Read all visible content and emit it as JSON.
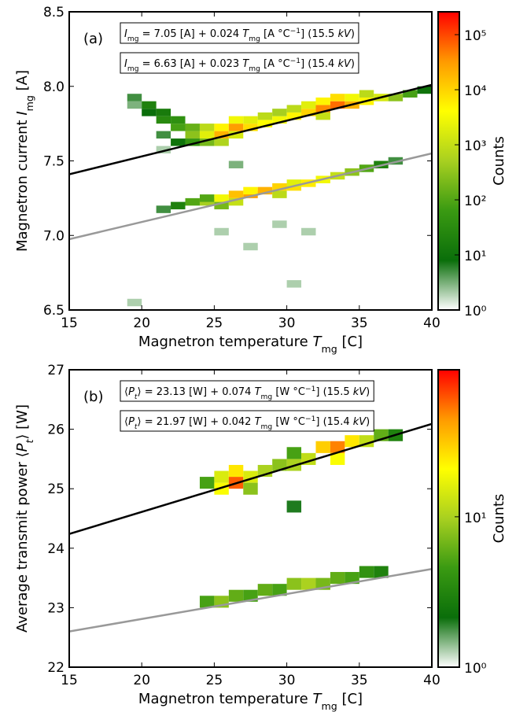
{
  "chart_data": [
    {
      "type": "heatmap",
      "panel_label": "(a)",
      "xlabel": [
        {
          "text": "Magnetron temperature "
        },
        {
          "text": "T",
          "style": "italic"
        },
        {
          "text": "mg",
          "style": "sub"
        },
        {
          "text": " [C]"
        }
      ],
      "ylabel": [
        {
          "text": "Magnetron current "
        },
        {
          "text": "I",
          "style": "italic"
        },
        {
          "text": "mg",
          "style": "sub"
        },
        {
          "text": " [A]"
        }
      ],
      "xlim": [
        15,
        40
      ],
      "xticks": [
        15,
        20,
        25,
        30,
        35,
        40
      ],
      "ylim": [
        6.5,
        8.5
      ],
      "yticks": [
        6.5,
        {
          "value": 7,
          "label": "7.0"
        },
        7.5,
        {
          "value": 8,
          "label": "8.0"
        },
        8.5
      ],
      "bin_width": [
        1,
        0.05
      ],
      "colormap": [
        "#ffffff",
        "#0a6e0a",
        "#3a9a12",
        "#a8d020",
        "#ffff00",
        "#ff9a00",
        "#ff0000"
      ],
      "cells": [
        [
          19,
          7.85,
          3
        ],
        [
          19,
          7.9,
          5
        ],
        [
          20,
          7.8,
          8
        ],
        [
          20,
          7.85,
          20
        ],
        [
          21,
          7.75,
          30
        ],
        [
          21,
          7.8,
          15
        ],
        [
          21,
          7.65,
          5
        ],
        [
          22,
          7.7,
          80
        ],
        [
          22,
          7.75,
          40
        ],
        [
          22,
          7.6,
          10
        ],
        [
          23,
          7.65,
          300
        ],
        [
          23,
          7.7,
          150
        ],
        [
          23,
          7.6,
          50
        ],
        [
          24,
          7.65,
          2000
        ],
        [
          24,
          7.7,
          800
        ],
        [
          24,
          7.6,
          200
        ],
        [
          25,
          7.65,
          20000
        ],
        [
          25,
          7.7,
          5000
        ],
        [
          25,
          7.6,
          600
        ],
        [
          26,
          7.7,
          30000
        ],
        [
          26,
          7.75,
          3000
        ],
        [
          26,
          7.65,
          1500
        ],
        [
          27,
          7.7,
          8000
        ],
        [
          27,
          7.75,
          2000
        ],
        [
          28,
          7.725,
          4000
        ],
        [
          28,
          7.775,
          800
        ],
        [
          29,
          7.75,
          3000
        ],
        [
          29,
          7.8,
          500
        ],
        [
          30,
          7.775,
          5000
        ],
        [
          30,
          7.825,
          800
        ],
        [
          31,
          7.8,
          10000
        ],
        [
          31,
          7.85,
          2000
        ],
        [
          32,
          7.825,
          40000
        ],
        [
          32,
          7.875,
          5000
        ],
        [
          32,
          7.775,
          1000
        ],
        [
          33,
          7.85,
          60000
        ],
        [
          33,
          7.9,
          8000
        ],
        [
          34,
          7.85,
          20000
        ],
        [
          34,
          7.9,
          3000
        ],
        [
          35,
          7.875,
          5000
        ],
        [
          35,
          7.925,
          800
        ],
        [
          36,
          7.9,
          1500
        ],
        [
          37,
          7.9,
          300
        ],
        [
          38,
          7.925,
          80
        ],
        [
          39,
          7.95,
          10
        ],
        [
          19,
          6.525,
          2
        ],
        [
          21,
          7.55,
          2
        ],
        [
          26,
          7.45,
          3
        ],
        [
          30,
          6.65,
          2
        ],
        [
          29,
          7.05,
          2
        ],
        [
          21,
          7.15,
          5
        ],
        [
          22,
          7.175,
          20
        ],
        [
          23,
          7.2,
          100
        ],
        [
          24,
          7.2,
          500
        ],
        [
          24,
          7.225,
          100
        ],
        [
          25,
          7.225,
          3000
        ],
        [
          25,
          7.175,
          200
        ],
        [
          26,
          7.25,
          15000
        ],
        [
          26,
          7.2,
          1000
        ],
        [
          27,
          7.25,
          30000
        ],
        [
          27,
          7.275,
          5000
        ],
        [
          28,
          7.275,
          20000
        ],
        [
          29,
          7.3,
          10000
        ],
        [
          29,
          7.25,
          800
        ],
        [
          30,
          7.3,
          8000
        ],
        [
          30,
          7.325,
          2000
        ],
        [
          31,
          7.325,
          6000
        ],
        [
          32,
          7.35,
          3000
        ],
        [
          33,
          7.375,
          1000
        ],
        [
          34,
          7.4,
          300
        ],
        [
          35,
          7.425,
          100
        ],
        [
          36,
          7.45,
          20
        ],
        [
          37,
          7.475,
          5
        ],
        [
          27,
          6.9,
          2
        ],
        [
          31,
          7.0,
          2
        ],
        [
          25,
          7.0,
          2
        ]
      ],
      "fits": [
        {
          "intercept": 7.05,
          "slope": 0.024,
          "color": "#000000",
          "label": [
            {
              "text": "I",
              "style": "italic"
            },
            {
              "text": "mg",
              "style": "sub"
            },
            {
              "text": " = 7.05 [A] + 0.024 "
            },
            {
              "text": "T",
              "style": "italic"
            },
            {
              "text": "mg",
              "style": "sub"
            },
            {
              "text": " [A °C"
            },
            {
              "text": "−1",
              "style": "sup"
            },
            {
              "text": "]   (15.5 "
            },
            {
              "text": "kV",
              "style": "italic"
            },
            {
              "text": ")"
            }
          ]
        },
        {
          "intercept": 6.63,
          "slope": 0.023,
          "color": "#999999",
          "label": [
            {
              "text": "I",
              "style": "italic"
            },
            {
              "text": "mg",
              "style": "sub"
            },
            {
              "text": " = 6.63 [A] + 0.023 "
            },
            {
              "text": "T",
              "style": "italic"
            },
            {
              "text": "mg",
              "style": "sub"
            },
            {
              "text": " [A °C"
            },
            {
              "text": "−1",
              "style": "sup"
            },
            {
              "text": "]   (15.4  "
            },
            {
              "text": "kV",
              "style": "italic"
            },
            {
              "text": ")"
            }
          ]
        }
      ],
      "colorbar": {
        "label": "Counts",
        "scale": "log",
        "lim": [
          1,
          260000
        ],
        "ticks": [
          {
            "value": 1,
            "label": "10⁰"
          },
          {
            "value": 10,
            "label": "10¹"
          },
          {
            "value": 100,
            "label": "10²"
          },
          {
            "value": 1000,
            "label": "10³"
          },
          {
            "value": 10000,
            "label": "10⁴"
          },
          {
            "value": 100000,
            "label": "10⁵"
          }
        ]
      }
    },
    {
      "type": "heatmap",
      "panel_label": "(b)",
      "xlabel": [
        {
          "text": "Magnetron temperature "
        },
        {
          "text": "T",
          "style": "italic"
        },
        {
          "text": "mg",
          "style": "sub"
        },
        {
          "text": " [C]"
        }
      ],
      "ylabel": [
        {
          "text": "Average transmit power ⟨"
        },
        {
          "text": "P",
          "style": "italic"
        },
        {
          "text": "t",
          "style": "italic-sub"
        },
        {
          "text": "⟩ [W]"
        }
      ],
      "xlim": [
        15,
        40
      ],
      "xticks": [
        15,
        20,
        25,
        30,
        35,
        40
      ],
      "ylim": [
        22,
        27
      ],
      "yticks": [
        22,
        23,
        24,
        25,
        26,
        27
      ],
      "bin_width": [
        1,
        0.2
      ],
      "colormap": [
        "#ffffff",
        "#0a6e0a",
        "#3a9a12",
        "#a8d020",
        "#ffff00",
        "#ff9a00",
        "#ff0000"
      ],
      "cells": [
        [
          24,
          25.0,
          5
        ],
        [
          25,
          24.9,
          20
        ],
        [
          25,
          25.1,
          15
        ],
        [
          26,
          25.0,
          60
        ],
        [
          26,
          25.2,
          25
        ],
        [
          27,
          25.1,
          15
        ],
        [
          27,
          24.9,
          8
        ],
        [
          28,
          25.2,
          10
        ],
        [
          29,
          25.3,
          8
        ],
        [
          30,
          25.3,
          10
        ],
        [
          30,
          25.5,
          5
        ],
        [
          31,
          25.4,
          12
        ],
        [
          32,
          25.6,
          30
        ],
        [
          33,
          25.6,
          50
        ],
        [
          33,
          25.4,
          20
        ],
        [
          34,
          25.7,
          25
        ],
        [
          35,
          25.7,
          12
        ],
        [
          36,
          25.8,
          6
        ],
        [
          37,
          25.8,
          3
        ],
        [
          30,
          24.6,
          2
        ],
        [
          24,
          23.0,
          5
        ],
        [
          25,
          23.0,
          8
        ],
        [
          26,
          23.1,
          6
        ],
        [
          27,
          23.1,
          5
        ],
        [
          28,
          23.2,
          6
        ],
        [
          29,
          23.2,
          5
        ],
        [
          30,
          23.3,
          8
        ],
        [
          31,
          23.3,
          10
        ],
        [
          32,
          23.3,
          7
        ],
        [
          33,
          23.4,
          6
        ],
        [
          34,
          23.4,
          5
        ],
        [
          35,
          23.5,
          4
        ],
        [
          36,
          23.5,
          3
        ]
      ],
      "fits": [
        {
          "intercept": 23.13,
          "slope": 0.074,
          "color": "#000000",
          "label": [
            {
              "text": "⟨"
            },
            {
              "text": "P",
              "style": "italic"
            },
            {
              "text": "t",
              "style": "italic-sub"
            },
            {
              "text": "⟩ = 23.13 [W] + 0.074 "
            },
            {
              "text": "T",
              "style": "italic"
            },
            {
              "text": "mg",
              "style": "sub"
            },
            {
              "text": " [W °C"
            },
            {
              "text": "−1",
              "style": "sup"
            },
            {
              "text": "]    (15.5 "
            },
            {
              "text": "kV",
              "style": "italic"
            },
            {
              "text": ")"
            }
          ]
        },
        {
          "intercept": 21.97,
          "slope": 0.042,
          "color": "#999999",
          "label": [
            {
              "text": "⟨"
            },
            {
              "text": "P",
              "style": "italic"
            },
            {
              "text": "t",
              "style": "italic-sub"
            },
            {
              "text": "⟩ = 21.97 [W] + 0.042 "
            },
            {
              "text": "T",
              "style": "italic"
            },
            {
              "text": "mg",
              "style": "sub"
            },
            {
              "text": " [W °C"
            },
            {
              "text": "−1",
              "style": "sup"
            },
            {
              "text": "]    (15.4 "
            },
            {
              "text": "kV",
              "style": "italic"
            },
            {
              "text": ")"
            }
          ]
        }
      ],
      "colorbar": {
        "label": "Counts",
        "scale": "log",
        "lim": [
          1,
          95
        ],
        "ticks": [
          {
            "value": 1,
            "label": "10⁰"
          },
          {
            "value": 10,
            "label": "10¹"
          }
        ]
      }
    }
  ]
}
